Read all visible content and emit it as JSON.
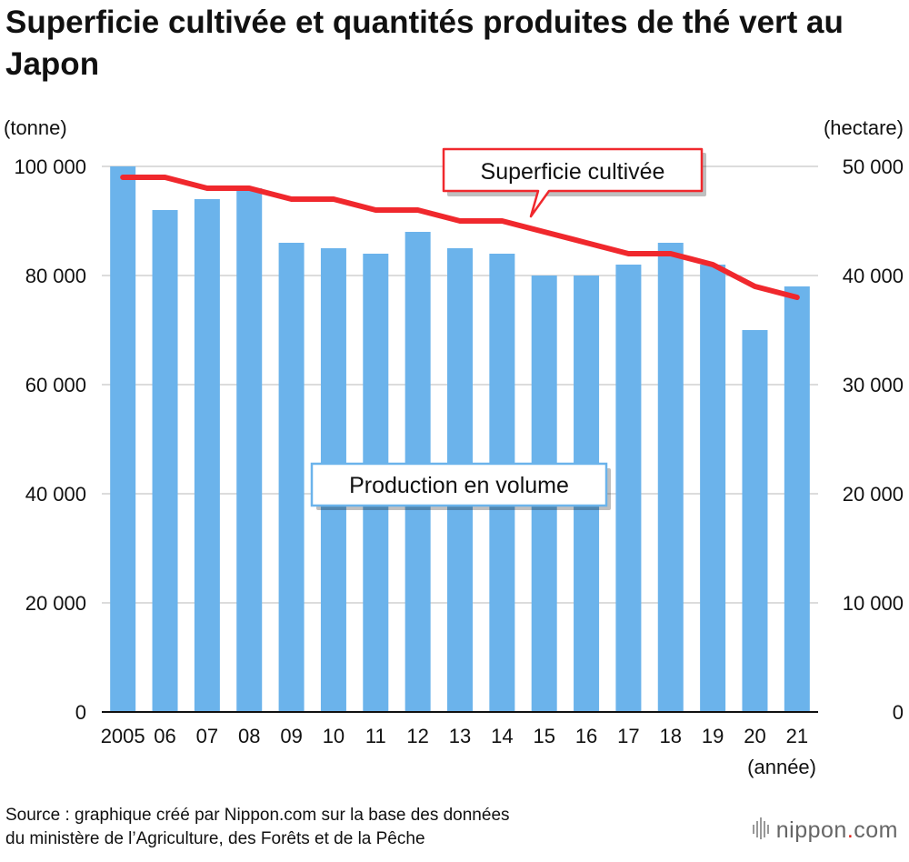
{
  "chart_data": {
    "type": "bar+line",
    "title": "Superficie cultivée et quantités produites de thé vert au Japon",
    "x_categories": [
      "2005",
      "06",
      "07",
      "08",
      "09",
      "10",
      "11",
      "12",
      "13",
      "14",
      "15",
      "16",
      "17",
      "18",
      "19",
      "20",
      "21"
    ],
    "xlabel": "(année)",
    "y_left": {
      "label": "(tonne)",
      "range": [
        0,
        100000
      ],
      "ticks": [
        "0",
        "20 000",
        "40 000",
        "60 000",
        "80 000",
        "100 000"
      ]
    },
    "y_right": {
      "label": "(hectare)",
      "range": [
        0,
        50000
      ],
      "ticks": [
        "0",
        "10 000",
        "20 000",
        "30 000",
        "40 000",
        "50 000"
      ]
    },
    "grid": true,
    "series": [
      {
        "name": "Production en volume",
        "kind": "bar",
        "axis": "left",
        "color": "#6bb3eb",
        "values": [
          100000,
          92000,
          94000,
          96000,
          86000,
          85000,
          84000,
          88000,
          85000,
          84000,
          80000,
          80000,
          82000,
          86000,
          82000,
          70000,
          78000
        ]
      },
      {
        "name": "Superficie cultivée",
        "kind": "line",
        "axis": "right",
        "color": "#f0282d",
        "values": [
          49000,
          49000,
          48000,
          48000,
          47000,
          47000,
          46000,
          46000,
          45000,
          45000,
          44000,
          43000,
          42000,
          42000,
          41000,
          39000,
          38000
        ]
      }
    ]
  },
  "source_text": {
    "line1": "Source : graphique créé par Nippon.com sur la base des données",
    "line2": "du ministère de l’Agriculture, des Forêts et de la Pêche"
  },
  "logo": {
    "text": "nippon",
    "dot": ".",
    "suffix": "com"
  }
}
